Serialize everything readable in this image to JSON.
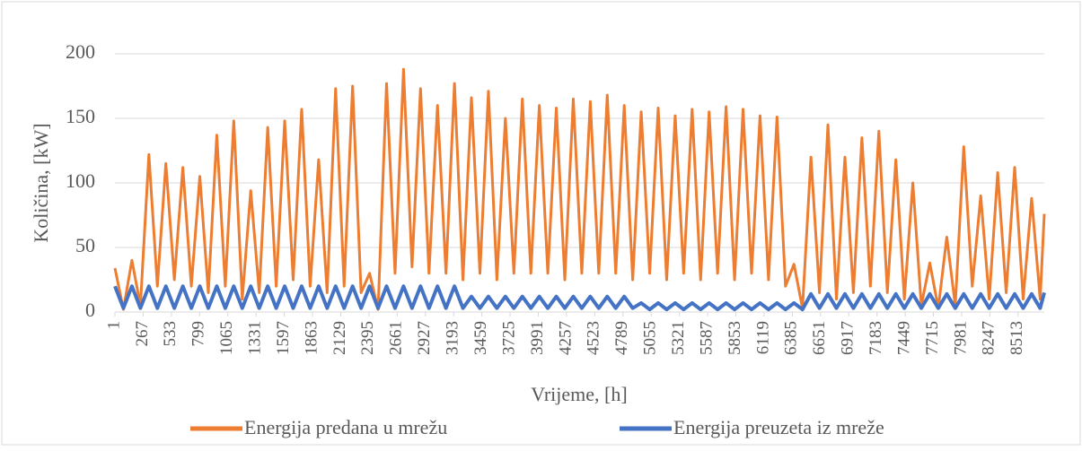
{
  "chart_data": {
    "type": "line",
    "xlabel": "Vrijeme, [h]",
    "ylabel": "Količina, [kW]",
    "x": [
      1,
      81,
      161,
      241,
      321,
      401,
      481,
      561,
      641,
      721,
      801,
      881,
      961,
      1041,
      1121,
      1201,
      1281,
      1361,
      1441,
      1521,
      1601,
      1681,
      1761,
      1841,
      1921,
      2001,
      2081,
      2161,
      2241,
      2321,
      2401,
      2481,
      2561,
      2641,
      2721,
      2801,
      2881,
      2961,
      3041,
      3121,
      3201,
      3281,
      3361,
      3441,
      3521,
      3601,
      3681,
      3761,
      3841,
      3921,
      4001,
      4081,
      4161,
      4241,
      4321,
      4401,
      4481,
      4561,
      4641,
      4721,
      4801,
      4881,
      4961,
      5041,
      5121,
      5201,
      5281,
      5361,
      5441,
      5521,
      5601,
      5681,
      5761,
      5841,
      5921,
      6001,
      6081,
      6161,
      6241,
      6321,
      6401,
      6481,
      6561,
      6641,
      6721,
      6801,
      6881,
      6961,
      7041,
      7121,
      7201,
      7281,
      7361,
      7441,
      7521,
      7601,
      7681,
      7761,
      7841,
      7921,
      8001,
      8081,
      8161,
      8241,
      8321,
      8401,
      8481,
      8561,
      8641,
      8721,
      8760
    ],
    "series": [
      {
        "name": "Energija predana u mrežu",
        "color": "#ed7d31",
        "values": [
          34,
          2,
          40,
          5,
          122,
          20,
          115,
          25,
          112,
          20,
          105,
          15,
          137,
          20,
          148,
          10,
          94,
          15,
          143,
          20,
          148,
          25,
          157,
          20,
          118,
          15,
          173,
          20,
          175,
          15,
          30,
          2,
          177,
          30,
          188,
          35,
          173,
          30,
          160,
          30,
          177,
          25,
          166,
          30,
          171,
          25,
          150,
          30,
          165,
          30,
          160,
          30,
          158,
          25,
          165,
          30,
          163,
          30,
          168,
          30,
          160,
          25,
          155,
          30,
          158,
          25,
          152,
          30,
          157,
          25,
          155,
          30,
          159,
          25,
          157,
          30,
          152,
          25,
          151,
          20,
          37,
          3,
          120,
          15,
          145,
          10,
          120,
          15,
          135,
          20,
          140,
          15,
          118,
          10,
          100,
          5,
          38,
          3,
          58,
          5,
          128,
          20,
          90,
          10,
          108,
          15,
          112,
          10,
          88,
          10,
          76
        ]
      },
      {
        "name": "Energija preuzeta iz mreže",
        "color": "#4472c4",
        "values": [
          20,
          3,
          20,
          3,
          20,
          3,
          20,
          3,
          20,
          3,
          20,
          3,
          20,
          3,
          20,
          3,
          20,
          3,
          20,
          3,
          20,
          3,
          20,
          3,
          20,
          3,
          20,
          3,
          20,
          3,
          20,
          3,
          20,
          3,
          20,
          3,
          20,
          3,
          20,
          3,
          20,
          3,
          12,
          3,
          12,
          3,
          12,
          3,
          12,
          3,
          12,
          3,
          12,
          3,
          12,
          3,
          12,
          3,
          12,
          3,
          12,
          3,
          7,
          2,
          7,
          2,
          7,
          2,
          7,
          2,
          7,
          2,
          7,
          2,
          7,
          2,
          7,
          2,
          7,
          2,
          7,
          2,
          14,
          3,
          14,
          3,
          14,
          3,
          14,
          3,
          14,
          3,
          14,
          3,
          14,
          3,
          14,
          3,
          14,
          3,
          14,
          3,
          14,
          3,
          14,
          3,
          14,
          3,
          14,
          3,
          15
        ]
      }
    ],
    "xlim": [
      1,
      8760
    ],
    "xticks": [
      1,
      267,
      533,
      799,
      1065,
      1331,
      1597,
      1863,
      2129,
      2395,
      2661,
      2927,
      3193,
      3459,
      3725,
      3991,
      4257,
      4523,
      4789,
      5055,
      5321,
      5587,
      5853,
      6119,
      6385,
      6651,
      6917,
      7183,
      7449,
      7715,
      7981,
      8247,
      8513
    ],
    "ylim": [
      0,
      200
    ],
    "yticks": [
      0,
      50,
      100,
      150,
      200
    ],
    "grid": true,
    "legend": "bottom"
  }
}
